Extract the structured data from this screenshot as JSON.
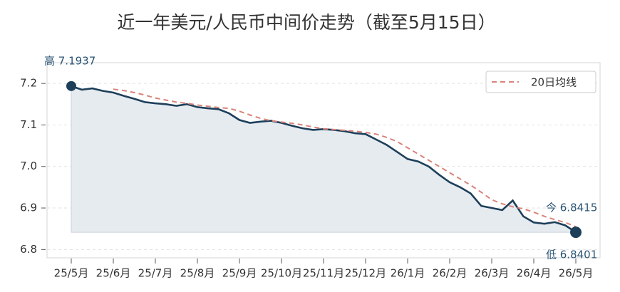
{
  "chart_data": {
    "type": "line",
    "title": "近一年美元/人民币中间价走势（截至5月15日）",
    "categories": [
      "25/5月",
      null,
      null,
      null,
      "25/6月",
      null,
      null,
      null,
      "25/7月",
      null,
      null,
      null,
      "25/8月",
      null,
      null,
      null,
      "25/9月",
      null,
      null,
      null,
      "25/10月",
      null,
      null,
      null,
      "25/11月",
      null,
      null,
      null,
      "25/12月",
      null,
      null,
      null,
      "26/1月",
      null,
      null,
      null,
      "26/2月",
      null,
      null,
      null,
      "26/3月",
      null,
      null,
      null,
      "26/4月",
      null,
      null,
      null,
      "26/5月"
    ],
    "series": [
      {
        "color": "#1d3f5a",
        "fill": "#e6ebf0",
        "values": [
          7.1937,
          7.185,
          7.188,
          7.182,
          7.178,
          7.17,
          7.163,
          7.155,
          7.152,
          7.15,
          7.146,
          7.15,
          7.143,
          7.14,
          7.138,
          7.128,
          7.112,
          7.105,
          7.108,
          7.11,
          7.105,
          7.098,
          7.092,
          7.088,
          7.09,
          7.088,
          7.085,
          7.08,
          7.078,
          7.065,
          7.052,
          7.035,
          7.018,
          7.012,
          7.0,
          6.98,
          6.962,
          6.95,
          6.935,
          6.905,
          6.9,
          6.895,
          6.918,
          6.88,
          6.865,
          6.862,
          6.866,
          6.858,
          6.8415
        ]
      },
      {
        "name": "20日均线",
        "color": "#d9837a",
        "dashed": true,
        "values": [
          null,
          null,
          null,
          null,
          7.186,
          7.183,
          7.178,
          7.172,
          7.165,
          7.16,
          7.155,
          7.152,
          7.148,
          7.145,
          7.142,
          7.14,
          7.133,
          7.124,
          7.116,
          7.11,
          7.107,
          7.104,
          7.1,
          7.095,
          7.091,
          7.089,
          7.087,
          7.085,
          7.082,
          7.078,
          7.07,
          7.06,
          7.045,
          7.03,
          7.015,
          7.0,
          6.985,
          6.97,
          6.955,
          6.938,
          6.92,
          6.91,
          6.903,
          6.898,
          6.89,
          6.88,
          6.872,
          6.865,
          6.855
        ]
      }
    ],
    "annotations": {
      "high": "高 7.1937",
      "current": "今 6.8415",
      "low": "低 6.8401"
    },
    "ylim": [
      6.78,
      7.25
    ],
    "yticks": [
      6.8,
      6.9,
      {
        "value": 7,
        "label": "7.0"
      },
      7.1,
      7.2
    ],
    "grid": true,
    "legend": "upper right"
  }
}
